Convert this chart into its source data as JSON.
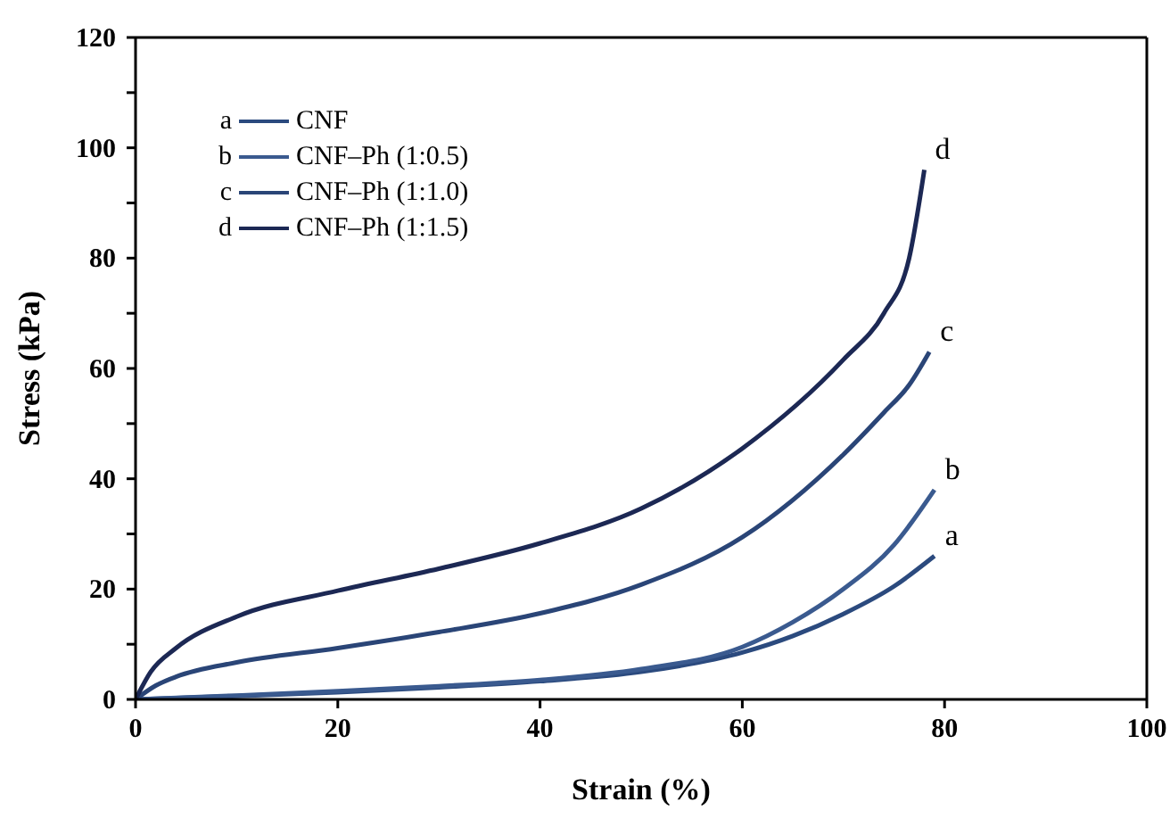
{
  "chart_data": {
    "type": "line",
    "xlabel": "Strain (%)",
    "ylabel": "Stress (kPa)",
    "xlim": [
      0,
      100
    ],
    "xticks": [
      0,
      20,
      40,
      60,
      80,
      100
    ],
    "ylim": [
      0,
      120
    ],
    "yticks": [
      0,
      {
        "value": 10,
        "label": null
      },
      20,
      {
        "value": 30,
        "label": null
      },
      40,
      {
        "value": 50,
        "label": null
      },
      60,
      {
        "value": 70,
        "label": null
      },
      80,
      {
        "value": 90,
        "label": null
      },
      100,
      {
        "value": 110,
        "label": null
      },
      120
    ],
    "grid": false,
    "legend": "top left",
    "marker": "none",
    "line_style": "solid",
    "series": [
      {
        "name": "CNF",
        "color": "#2b4a7e",
        "x": [
          0,
          10,
          20,
          30,
          40,
          50,
          60,
          65,
          70,
          75,
          79
        ],
        "values": [
          0,
          0.6,
          1.3,
          2.2,
          3.3,
          5,
          8.5,
          11.5,
          15.5,
          20.5,
          26
        ]
      },
      {
        "name": "CNF–Ph (1:0.5)",
        "color": "#3a5a8f",
        "x": [
          0,
          10,
          20,
          30,
          40,
          50,
          60,
          65,
          70,
          75,
          79
        ],
        "values": [
          0,
          0.7,
          1.5,
          2.4,
          3.5,
          5.5,
          9.5,
          14,
          20,
          28,
          38
        ]
      },
      {
        "name": "CNF–Ph (1:1.0)",
        "color": "#2a4577",
        "x": [
          0,
          2,
          4,
          10,
          20,
          30,
          40,
          50,
          60,
          70,
          74,
          76.5,
          78.5
        ],
        "values": [
          0,
          2.5,
          4.1,
          6.7,
          9.3,
          12.2,
          15.6,
          20.8,
          29.4,
          44.4,
          52,
          57,
          63
        ]
      },
      {
        "name": "CNF–Ph (1:1.5)",
        "color": "#1c2854",
        "x": [
          0,
          1.5,
          4,
          10,
          20,
          30,
          40,
          50,
          60,
          70,
          74,
          76.5,
          78
        ],
        "values": [
          0,
          5,
          9.3,
          15,
          19.7,
          23.7,
          28.3,
          34.6,
          45.5,
          61.6,
          70,
          80,
          96
        ]
      }
    ],
    "annotations": [
      "a",
      "b",
      "c",
      "d"
    ]
  }
}
